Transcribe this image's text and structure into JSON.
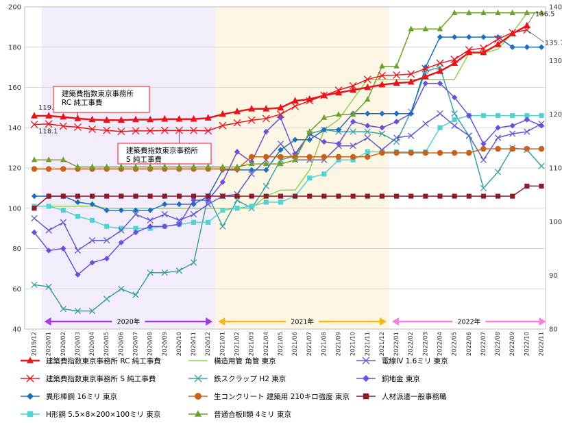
{
  "chart_data": {
    "type": "line",
    "x": [
      "2019/12",
      "2020/01",
      "2020/02",
      "2020/03",
      "2020/04",
      "2020/05",
      "2020/06",
      "2020/07",
      "2020/08",
      "2020/09",
      "2020/10",
      "2020/11",
      "2020/12",
      "2021/01",
      "2021/02",
      "2021/03",
      "2021/04",
      "2021/05",
      "2021/06",
      "2021/07",
      "2021/08",
      "2021/09",
      "2021/10",
      "2021/11",
      "2021/12",
      "2022/01",
      "2022/02",
      "2022/03",
      "2022/04",
      "2022/05",
      "2022/06",
      "2022/07",
      "2022/08",
      "2022/09",
      "2022/10",
      "2022/11"
    ],
    "y_left": {
      "ylim": [
        40,
        200
      ],
      "ticks": [
        40,
        60,
        80,
        100,
        120,
        140,
        160,
        180,
        200
      ]
    },
    "y_right": {
      "ylim": [
        80,
        140
      ],
      "ticks": [
        80,
        90,
        100,
        110,
        120,
        130,
        140
      ]
    },
    "grid": true,
    "legend_position": "bottom",
    "periods": [
      {
        "label": "2020年",
        "start": "2020/01",
        "end": "2020/12",
        "fill": "#f3ecfa",
        "arrow": "#a13de0"
      },
      {
        "label": "2021年",
        "start": "2021/01",
        "end": "2021/12",
        "fill": "#fdf6e4",
        "arrow": "#f2b81c"
      },
      {
        "label": "2022年",
        "start": "2022/01",
        "end": "2022/11",
        "fill": "#ffffff",
        "arrow": "#f57fe0"
      }
    ],
    "annotations": [
      {
        "text": "119.7",
        "series": 0,
        "at": "2019/12"
      },
      {
        "text": "118.1",
        "series": 1,
        "at": "2019/12"
      },
      {
        "text": "136.5",
        "series": 0,
        "at": "2022/10"
      },
      {
        "text": "135.7",
        "series": 1,
        "at": "2022/10"
      }
    ],
    "callouts": [
      {
        "lines": [
          "建築費指数東京事務所",
          "RC 純工事費"
        ],
        "series": 0
      },
      {
        "lines": [
          "建築費指数東京事務所",
          "S 純工事費"
        ],
        "series": 1
      }
    ],
    "series": [
      {
        "name": "建築費指数東京事務所 RC 純工事費",
        "axis": "right",
        "color": "#e8141b",
        "marker": "triangle",
        "width": 2.5,
        "values": [
          119.7,
          119.7,
          119.5,
          119.2,
          119.0,
          118.9,
          118.9,
          119.0,
          119.0,
          119.1,
          119.1,
          119.1,
          119.3,
          120.0,
          120.5,
          121.0,
          121.0,
          121.2,
          122.5,
          122.8,
          123.5,
          124.0,
          124.5,
          125.0,
          125.5,
          125.8,
          126.0,
          127.0,
          128.0,
          129.5,
          131.5,
          131.5,
          133.0,
          135.0,
          136.5,
          null
        ]
      },
      {
        "name": "建築費指数東京事務所 S 純工事費",
        "axis": "right",
        "color": "#e8141b",
        "marker": "x",
        "width": 1.5,
        "values": [
          118.1,
          118.2,
          117.8,
          117.6,
          117.2,
          117.0,
          116.8,
          116.9,
          116.9,
          117.0,
          117.0,
          117.0,
          116.9,
          117.9,
          118.4,
          118.9,
          119.2,
          120.0,
          121.5,
          122.5,
          123.5,
          124.5,
          125.3,
          126.5,
          127.2,
          127.3,
          127.5,
          128.5,
          129.5,
          130.2,
          132.0,
          132.3,
          134.0,
          135.2,
          135.7,
          null
        ]
      },
      {
        "name": "構造用管 角管 東京",
        "axis": "left",
        "color": "#8fd14f",
        "marker": "none",
        "width": 1.5,
        "values": [
          101,
          101,
          101,
          101,
          101,
          100,
          100,
          100,
          100,
          100,
          100,
          100,
          100,
          100,
          100,
          100,
          106,
          109,
          109,
          119,
          139,
          144,
          154,
          164,
          164,
          164,
          164,
          164,
          164,
          164,
          177,
          177,
          179,
          187,
          197,
          null
        ]
      },
      {
        "name": "鉄スクラップ H2 東京",
        "axis": "left",
        "color": "#3aa1a3",
        "marker": "x",
        "width": 1.5,
        "values": [
          62,
          61,
          50,
          49,
          49,
          55,
          60,
          57,
          68,
          68,
          69,
          73,
          106,
          91,
          104,
          100,
          111,
          124,
          126,
          137,
          139,
          138,
          138,
          138,
          137,
          133,
          148,
          168,
          170,
          147,
          136,
          110,
          118,
          130,
          129,
          121
        ]
      },
      {
        "name": "異形棒鋼 16ミリ 東京",
        "axis": "left",
        "color": "#1c6fc0",
        "marker": "diamond",
        "width": 1.5,
        "values": [
          106,
          106,
          106,
          103,
          102,
          99,
          99,
          99,
          99,
          102,
          102,
          102,
          106,
          119,
          119,
          119,
          119,
          129,
          134,
          134,
          139,
          139,
          147,
          147,
          147,
          147,
          147,
          170,
          185,
          185,
          185,
          185,
          185,
          180,
          180,
          180
        ]
      },
      {
        "name": "生コンクリート 建築用 210キロ強度 東京",
        "axis": "left",
        "color": "#c8611d",
        "marker": "circle",
        "width": 1.5,
        "values": [
          119.5,
          119.5,
          119.5,
          119.5,
          119.5,
          119.5,
          119.5,
          119.5,
          119.5,
          119.5,
          119.5,
          119.5,
          119.5,
          119.5,
          119.5,
          125.5,
          125.5,
          125.5,
          125.5,
          125.5,
          125.5,
          125.5,
          125.5,
          125.5,
          127.5,
          127.5,
          127.5,
          127.5,
          127.5,
          127.5,
          127.5,
          129.5,
          129.5,
          129.5,
          129.5,
          129.5
        ]
      },
      {
        "name": "H形鋼 5.5×8×200×100ミリ 東京",
        "axis": "left",
        "color": "#4fd3d3",
        "marker": "square",
        "width": 1.5,
        "values": [
          101,
          101,
          99,
          96,
          94,
          91,
          90,
          90,
          90,
          91,
          92,
          93,
          93,
          99,
          100,
          101,
          103,
          103,
          106,
          115,
          117,
          124,
          124,
          128,
          128,
          128,
          128,
          128,
          140,
          144,
          146,
          146,
          146,
          146,
          146,
          146
        ]
      },
      {
        "name": "普通合板Ⅱ類 4ミリ 東京",
        "axis": "left",
        "color": "#6ca12c",
        "marker": "triangle",
        "width": 1.5,
        "values": [
          124,
          124,
          124,
          120.5,
          120.5,
          120.5,
          120.5,
          120.5,
          120.5,
          120.5,
          120.5,
          120.5,
          120.5,
          120.5,
          120.5,
          122,
          122,
          122,
          124,
          138,
          145,
          146.5,
          146.5,
          154,
          170.5,
          170.5,
          189,
          189,
          189,
          197,
          197,
          197,
          197,
          197,
          197,
          197
        ]
      },
      {
        "name": "電線IV 1.6ミリ 東京",
        "axis": "left",
        "color": "#5e5ec8",
        "marker": "x",
        "width": 1.5,
        "values": [
          95,
          89,
          93,
          79,
          84,
          84,
          89,
          97,
          94,
          97,
          94,
          97,
          102,
          106,
          107,
          117,
          124,
          132,
          124,
          124,
          124,
          131,
          131,
          135,
          129,
          135,
          136,
          142,
          147,
          141,
          136,
          124,
          135,
          137,
          138,
          142
        ]
      },
      {
        "name": "銅地金 東京",
        "axis": "left",
        "color": "#6a4fd8",
        "marker": "diamond",
        "width": 1.5,
        "values": [
          88,
          79,
          80,
          67,
          73,
          75,
          83,
          88,
          91,
          91,
          92,
          104,
          104,
          113,
          128,
          123,
          138,
          145,
          127,
          137,
          133,
          132,
          143,
          141,
          140,
          143,
          147,
          162,
          162,
          155,
          146,
          132,
          140,
          141,
          144,
          141
        ]
      },
      {
        "name": "人材派遣一般事務職",
        "axis": "left",
        "color": "#8b1c2c",
        "marker": "square",
        "width": 1.5,
        "values": [
          100,
          106,
          106,
          106,
          106,
          106,
          106,
          106,
          106,
          106,
          106,
          106,
          106,
          106,
          106,
          106,
          106,
          106,
          106,
          106,
          106,
          106,
          106,
          106,
          106,
          106,
          106,
          106,
          106,
          106,
          106,
          106,
          106,
          106,
          111,
          111
        ]
      }
    ]
  }
}
